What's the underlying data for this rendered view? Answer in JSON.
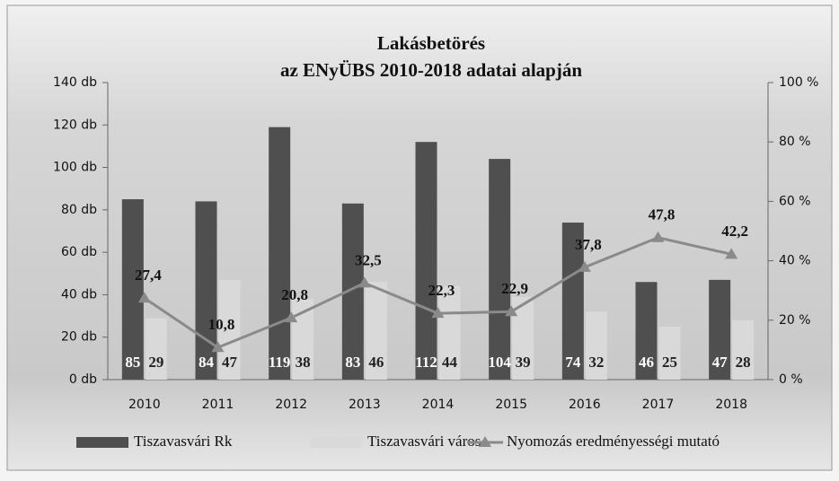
{
  "chart_data": {
    "type": "combo",
    "title": "Lakásbetörés",
    "subtitle": "az ENyÜBS 2010-2018 adatai alapján",
    "categories": [
      "2010",
      "2011",
      "2012",
      "2013",
      "2014",
      "2015",
      "2016",
      "2017",
      "2018"
    ],
    "series": [
      {
        "name": "Tiszavasvári Rk",
        "type": "bar",
        "color": "#4f4f4f",
        "values": [
          85,
          84,
          119,
          83,
          112,
          104,
          74,
          46,
          47
        ]
      },
      {
        "name": "Tiszavasvári város",
        "type": "bar",
        "color": "#d9d9d9",
        "values": [
          29,
          47,
          38,
          46,
          44,
          39,
          32,
          25,
          28
        ]
      },
      {
        "name": "Nyomozás eredményességi mutató",
        "type": "line",
        "axis": "y2",
        "color": "#8a8a8a",
        "values": [
          27.4,
          10.8,
          20.8,
          32.5,
          22.3,
          22.9,
          37.8,
          47.8,
          42.2
        ],
        "value_labels": [
          "27,4",
          "10,8",
          "20,8",
          "32,5",
          "22,3",
          "22,9",
          "37,8",
          "47,8",
          "42,2"
        ]
      }
    ],
    "ylim": [
      0,
      140
    ],
    "yticks": [
      {
        "value": 0,
        "label": "0 db"
      },
      {
        "value": 20,
        "label": "20 db"
      },
      {
        "value": 40,
        "label": "40 db"
      },
      {
        "value": 60,
        "label": "60 db"
      },
      {
        "value": 80,
        "label": "80 db"
      },
      {
        "value": 100,
        "label": "100 db"
      },
      {
        "value": 120,
        "label": "120 db"
      },
      {
        "value": 140,
        "label": "140 db"
      }
    ],
    "y2lim": [
      0,
      100
    ],
    "y2ticks": [
      {
        "value": 0,
        "label": "0 %"
      },
      {
        "value": 20,
        "label": "20 %"
      },
      {
        "value": 40,
        "label": "40 %"
      },
      {
        "value": 60,
        "label": "60 %"
      },
      {
        "value": 80,
        "label": "80 %"
      },
      {
        "value": 100,
        "label": "100 %"
      }
    ],
    "legend": "bottom"
  }
}
